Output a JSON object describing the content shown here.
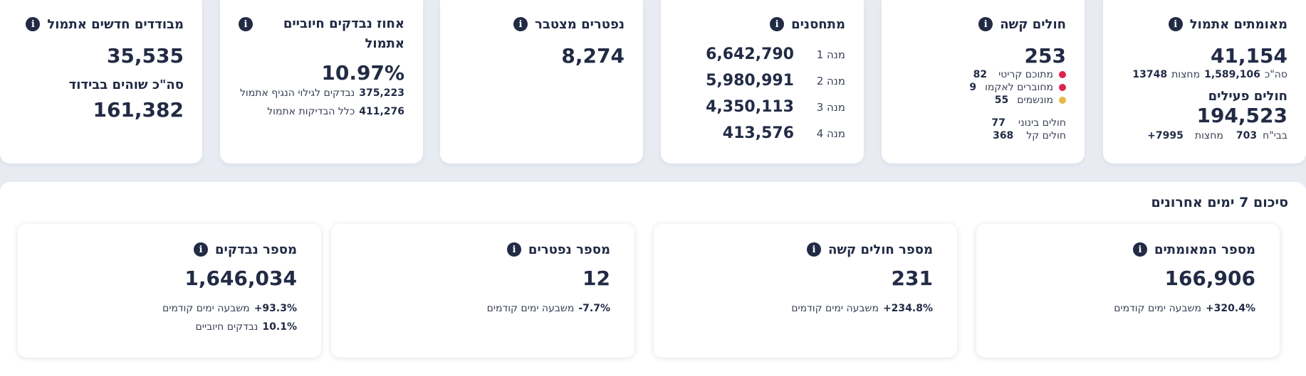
{
  "colors": {
    "critical": "#e0234e",
    "ecmo": "#e0234e",
    "ventilated": "#e6b84a",
    "text": "#222b45"
  },
  "cards": {
    "confirmed": {
      "title": "מאומתים אתמול",
      "value": "41,154",
      "line_label": "סה\"כ",
      "line_total": "1,589,106",
      "line_mid_label": "מחצות",
      "line_mid": "13748",
      "active_title": "חולים פעילים",
      "active_value": "194,523",
      "active_hospital_label": "בבי\"ח",
      "active_hospital": "703",
      "active_since_label": "מחצות",
      "active_since": "+7995"
    },
    "severe": {
      "title": "חולים קשה",
      "value": "253",
      "critical_label": "מתוכם קריטי",
      "critical": "82",
      "ecmo_label": "מחוברים לאקמו",
      "ecmo": "9",
      "ventilated_label": "מונשמים",
      "ventilated": "55",
      "moderate_label": "חולים בינוני",
      "moderate": "77",
      "mild_label": "חולים קל",
      "mild": "368"
    },
    "vaccinated": {
      "title": "מתחסנים",
      "doses": [
        {
          "label": "מנה 1",
          "value": "6,642,790"
        },
        {
          "label": "מנה 2",
          "value": "5,980,991"
        },
        {
          "label": "מנה 3",
          "value": "4,350,113"
        },
        {
          "label": "מנה 4",
          "value": "413,576"
        }
      ]
    },
    "deaths": {
      "title": "נפטרים מצטבר",
      "value": "8,274"
    },
    "positive_rate": {
      "title": "אחוז נבדקים חיוביים אתמול",
      "value": "10.97%",
      "line1_value": "375,223",
      "line1_label": "נבדקים לגילוי הנגיף אתמול",
      "line2_value": "411,276",
      "line2_label": "כלל הבדיקות אתמול"
    },
    "isolation": {
      "title": "מבודדים חדשים אתמול",
      "value": "35,535",
      "sub_title": "סה\"כ שוהים בבידוד",
      "sub_value": "161,382"
    }
  },
  "week": {
    "title": "סיכום 7 ימים אחרונים",
    "cards": [
      {
        "title": "מספר המאומתים",
        "value": "166,906",
        "change": "+320.4%",
        "change_label": "משבעה ימים קודמים"
      },
      {
        "title": "מספר חולים קשה",
        "value": "231",
        "change": "+234.8%",
        "change_label": "משבעה ימים קודמים"
      },
      {
        "title": "מספר נפטרים",
        "value": "12",
        "change": "-7.7%",
        "change_label": "משבעה ימים קודמים"
      },
      {
        "title": "מספר נבדקים",
        "value": "1,646,034",
        "change": "+93.3%",
        "change_label": "משבעה ימים קודמים",
        "extra": "10.1%",
        "extra_label": "נבדקים חיוביים"
      }
    ]
  },
  "icons": {
    "info": "info-icon"
  },
  "info_glyph": "i"
}
